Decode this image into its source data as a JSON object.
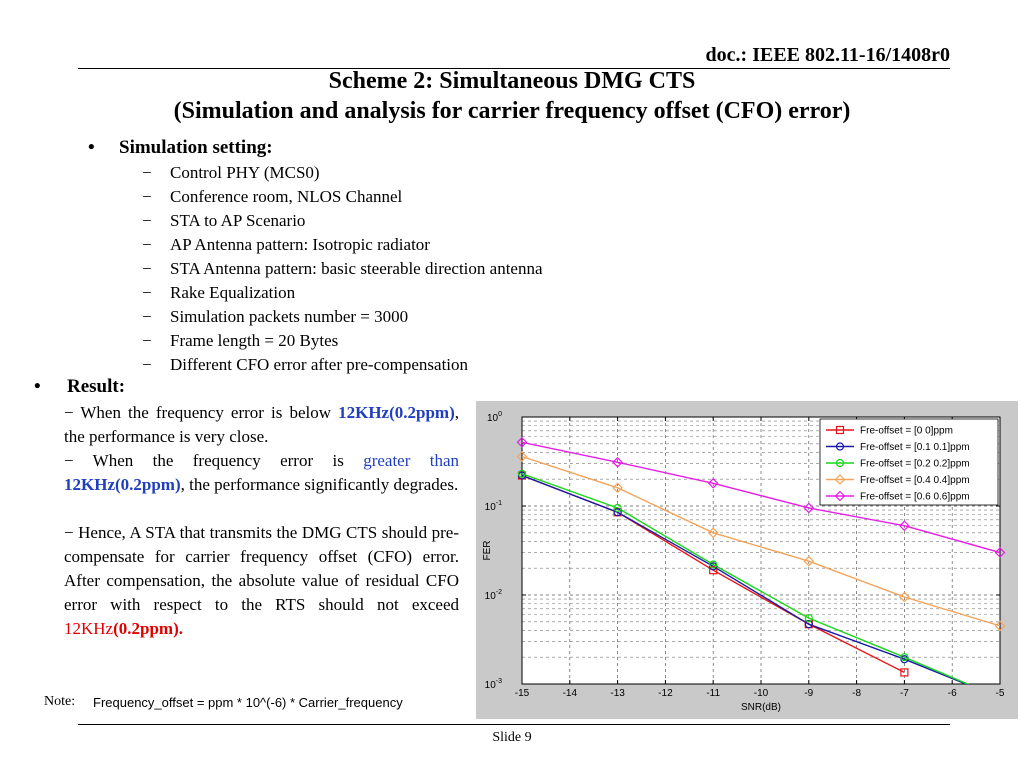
{
  "header": {
    "doc_id": "doc.: IEEE 802.11-16/1408r0",
    "title": "Scheme 2: Simultaneous DMG CTS",
    "subtitle": "(Simulation and analysis for carrier frequency offset (CFO) error)"
  },
  "settings": {
    "bullet": "•",
    "heading": "Simulation setting:",
    "dash": "−",
    "items": [
      "Control PHY (MCS0)",
      "Conference room, NLOS Channel",
      "STA to AP Scenario",
      "AP Antenna pattern: Isotropic radiator",
      "STA Antenna pattern: basic steerable direction antenna",
      "Rake Equalization",
      "Simulation packets number = 3000",
      "Frame length = 20 Bytes",
      "Different CFO error  after pre-compensation"
    ]
  },
  "result": {
    "bullet": "•",
    "heading": "Result:",
    "p1_a": "− When the frequency error is below ",
    "p1_b": "12KHz(0.2ppm)",
    "p1_c": ", the performance is very close.",
    "p2_a": "− When the frequency error is ",
    "p2_b": "greater than",
    "p2_c": "12KHz(0.2ppm)",
    "p2_d": ", the performance significantly degrades.",
    "p3_a": "− Hence, A STA that transmits the DMG CTS should pre-compensate for carrier frequency offset (CFO) error. After compensation, the absolute value of residual CFO error with respect to the RTS should not exceed ",
    "p3_b": "12KHz",
    "p3_c": "(0.2ppm)."
  },
  "note": {
    "label": "Note:",
    "formula": "Frequency_offset = ppm * 10^(-6) * Carrier_frequency"
  },
  "footer": {
    "slide": "Slide 9"
  },
  "chart_data": {
    "type": "line",
    "xlabel": "SNR(dB)",
    "ylabel": "FER",
    "xlim": [
      -15,
      -5
    ],
    "ylim": [
      0.001,
      1
    ],
    "yscale": "log",
    "grid": true,
    "legend_position": "top-right",
    "xticks": [
      "-15",
      "-14",
      "-13",
      "-12",
      "-11",
      "-10",
      "-9",
      "-8",
      "-7",
      "-6",
      "-5"
    ],
    "yticks": [
      {
        "base": "10",
        "exp": "0"
      },
      {
        "base": "10",
        "exp": "-1"
      },
      {
        "base": "10",
        "exp": "-2"
      },
      {
        "base": "10",
        "exp": "-3"
      }
    ],
    "series": [
      {
        "name": "Fre-offset = [0 0]ppm",
        "color": "#e8141a",
        "marker": "square",
        "x": [
          -15,
          -13,
          -11,
          -9,
          -7
        ],
        "y": [
          0.22,
          0.085,
          0.019,
          0.0047,
          0.00135
        ]
      },
      {
        "name": "Fre-offset = [0.1 0.1]ppm",
        "color": "#1a1aa8",
        "marker": "circle",
        "x": [
          -15,
          -13,
          -11,
          -9,
          -7,
          -5
        ],
        "y": [
          0.22,
          0.085,
          0.021,
          0.0047,
          0.0019,
          0.0007
        ]
      },
      {
        "name": "Fre-offset = [0.2 0.2]ppm",
        "color": "#16d816",
        "marker": "circle",
        "x": [
          -15,
          -13,
          -11,
          -9,
          -7,
          -5
        ],
        "y": [
          0.23,
          0.095,
          0.022,
          0.0055,
          0.002,
          0.0007
        ]
      },
      {
        "name": "Fre-offset = [0.4 0.4]ppm",
        "color": "#f2a45a",
        "marker": "diamond",
        "x": [
          -15,
          -13,
          -11,
          -9,
          -7,
          -5
        ],
        "y": [
          0.36,
          0.16,
          0.05,
          0.024,
          0.0095,
          0.0045
        ]
      },
      {
        "name": "Fre-offset = [0.6 0.6]ppm",
        "color": "#e61ee6",
        "marker": "diamond",
        "x": [
          -15,
          -13,
          -11,
          -9,
          -7,
          -5
        ],
        "y": [
          0.52,
          0.31,
          0.18,
          0.095,
          0.06,
          0.03
        ]
      }
    ]
  }
}
